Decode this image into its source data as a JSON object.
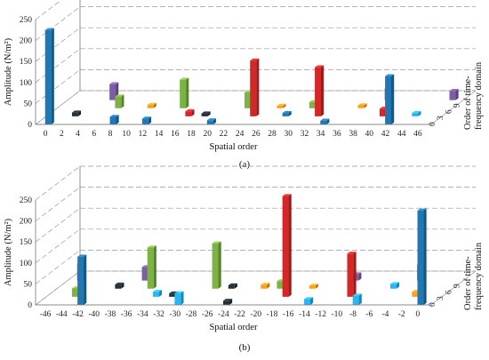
{
  "chart_data": [
    {
      "type": "bar",
      "panel_label": "(a)",
      "xlabel": "Spatial order",
      "ylabel": "Amplitude (N/m²)",
      "zlabel_lines": [
        "Order of time-",
        "frequency domain"
      ],
      "categories": [
        "0",
        "2",
        "4",
        "6",
        "8",
        "10",
        "12",
        "14",
        "16",
        "18",
        "20",
        "22",
        "24",
        "26",
        "28",
        "30",
        "32",
        "34",
        "36",
        "38",
        "40",
        "42",
        "44",
        "46"
      ],
      "depth_ticks": [
        "0",
        "3",
        "6",
        "9"
      ],
      "y_ticks": [
        "0",
        "50",
        "100",
        "150",
        "200",
        "250"
      ],
      "ylim": [
        0,
        250
      ],
      "grid": true,
      "bars": [
        {
          "x": "0",
          "depth": 0,
          "value": 225,
          "color": "#1f77b4"
        },
        {
          "x": "42",
          "depth": 0,
          "value": 115,
          "color": "#1f77b4"
        },
        {
          "x": "24",
          "depth": 1,
          "value": 133,
          "color": "#d62728"
        },
        {
          "x": "32",
          "depth": 1,
          "value": 117,
          "color": "#d62728"
        },
        {
          "x": "40",
          "depth": 1,
          "value": 18,
          "color": "#d62728"
        },
        {
          "x": "16",
          "depth": 1,
          "value": 12,
          "color": "#d62728"
        },
        {
          "x": "14",
          "depth": 2,
          "value": 68,
          "color": "#7cb342"
        },
        {
          "x": "22",
          "depth": 2,
          "value": 38,
          "color": "#7cb342"
        },
        {
          "x": "6",
          "depth": 2,
          "value": 28,
          "color": "#7cb342"
        },
        {
          "x": "30",
          "depth": 2,
          "value": 15,
          "color": "#7cb342"
        },
        {
          "x": "4",
          "depth": 3,
          "value": 38,
          "color": "#7b5ea7"
        },
        {
          "x": "38",
          "depth": 3,
          "value": 28,
          "color": "#7b5ea7"
        },
        {
          "x": "46",
          "depth": 3,
          "value": 22,
          "color": "#7b5ea7"
        },
        {
          "x": "8",
          "depth": 0,
          "value": 18,
          "color": "#1f77b4"
        },
        {
          "x": "12",
          "depth": 0,
          "value": 14,
          "color": "#1f77b4"
        },
        {
          "x": "20",
          "depth": 0,
          "value": 10,
          "color": "#1f77b4"
        },
        {
          "x": "34",
          "depth": 0,
          "value": 9,
          "color": "#1f77b4"
        },
        {
          "x": "10",
          "depth": 2,
          "value": 8,
          "color": "#ff9f1c"
        },
        {
          "x": "26",
          "depth": 2,
          "value": 6,
          "color": "#ff9f1c"
        },
        {
          "x": "36",
          "depth": 2,
          "value": 7,
          "color": "#ff9f1c"
        },
        {
          "x": "2",
          "depth": 1,
          "value": 9,
          "color": "#263238"
        },
        {
          "x": "18",
          "depth": 1,
          "value": 7,
          "color": "#263238"
        },
        {
          "x": "28",
          "depth": 1,
          "value": 8,
          "color": "#1f77b4"
        },
        {
          "x": "44",
          "depth": 1,
          "value": 8,
          "color": "#29b6f6"
        }
      ]
    },
    {
      "type": "bar",
      "panel_label": "(b)",
      "xlabel": "Spatial order",
      "ylabel": "Amplitude (N/m²)",
      "zlabel_lines": [
        "Order of time-",
        "frequency domain"
      ],
      "categories": [
        "-46",
        "-44",
        "-42",
        "-40",
        "-38",
        "-36",
        "-34",
        "-32",
        "-30",
        "-28",
        "-26",
        "-24",
        "-22",
        "-20",
        "-18",
        "-16",
        "-14",
        "-12",
        "-10",
        "-8",
        "-6",
        "-4",
        "-2",
        "0"
      ],
      "depth_ticks": [
        "0",
        "3",
        "6",
        "9"
      ],
      "y_ticks": [
        "0",
        "50",
        "100",
        "150",
        "200",
        "250"
      ],
      "ylim": [
        0,
        250
      ],
      "grid": true,
      "bars": [
        {
          "x": "0",
          "depth": 0,
          "value": 225,
          "color": "#1f77b4"
        },
        {
          "x": "-42",
          "depth": 0,
          "value": 115,
          "color": "#1f77b4"
        },
        {
          "x": "-18",
          "depth": 1,
          "value": 240,
          "color": "#d62728"
        },
        {
          "x": "-10",
          "depth": 1,
          "value": 103,
          "color": "#d62728"
        },
        {
          "x": "-36",
          "depth": 2,
          "value": 98,
          "color": "#7cb342"
        },
        {
          "x": "-28",
          "depth": 2,
          "value": 108,
          "color": "#7cb342"
        },
        {
          "x": "-20",
          "depth": 2,
          "value": 18,
          "color": "#7cb342"
        },
        {
          "x": "-46",
          "depth": 3,
          "value": 40,
          "color": "#7b5ea7"
        },
        {
          "x": "-38",
          "depth": 3,
          "value": 32,
          "color": "#7b5ea7"
        },
        {
          "x": "-4",
          "depth": 3,
          "value": 38,
          "color": "#7b5ea7"
        },
        {
          "x": "-12",
          "depth": 3,
          "value": 15,
          "color": "#7b5ea7"
        },
        {
          "x": "-30",
          "depth": 0,
          "value": 28,
          "color": "#29b6f6"
        },
        {
          "x": "-8",
          "depth": 0,
          "value": 22,
          "color": "#29b6f6"
        },
        {
          "x": "-14",
          "depth": 0,
          "value": 14,
          "color": "#29b6f6"
        },
        {
          "x": "-44",
          "depth": 1,
          "value": 20,
          "color": "#7cb342"
        },
        {
          "x": "-34",
          "depth": 1,
          "value": 12,
          "color": "#29b6f6"
        },
        {
          "x": "-40",
          "depth": 2,
          "value": 10,
          "color": "#263238"
        },
        {
          "x": "-26",
          "depth": 2,
          "value": 8,
          "color": "#263238"
        },
        {
          "x": "-22",
          "depth": 2,
          "value": 9,
          "color": "#ff9f1c"
        },
        {
          "x": "-16",
          "depth": 2,
          "value": 7,
          "color": "#ff9f1c"
        },
        {
          "x": "-6",
          "depth": 2,
          "value": 11,
          "color": "#29b6f6"
        },
        {
          "x": "-2",
          "depth": 1,
          "value": 12,
          "color": "#ff9f1c"
        },
        {
          "x": "-32",
          "depth": 1,
          "value": 8,
          "color": "#263238"
        },
        {
          "x": "-24",
          "depth": 0,
          "value": 10,
          "color": "#263238"
        }
      ]
    }
  ]
}
